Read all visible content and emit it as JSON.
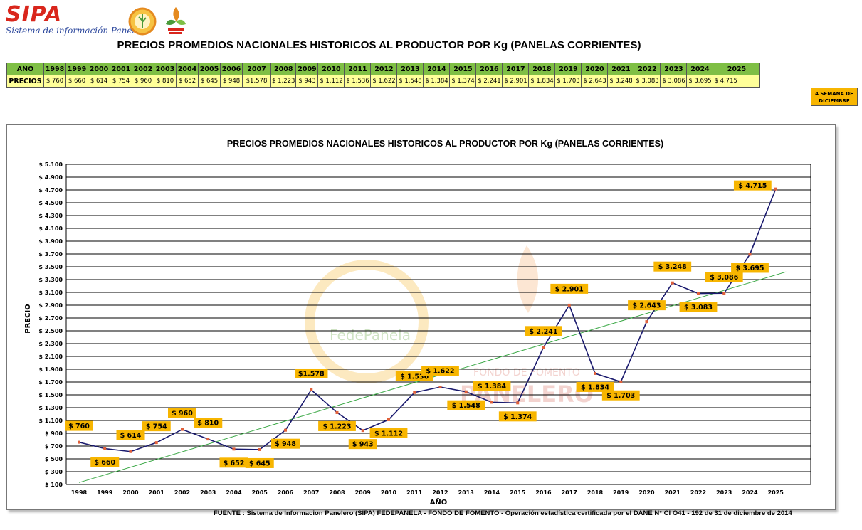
{
  "header": {
    "logo_text": "SIPA",
    "logo_subtitle": "Sistema de información Panelero",
    "title": "PRECIOS PROMEDIOS NACIONALES HISTORICOS AL PRODUCTOR POR Kg (PANELAS CORRIENTES)"
  },
  "price_table": {
    "year_header": "AÑO",
    "price_header": "PRECIOS",
    "years": [
      "1998",
      "1999",
      "2000",
      "2001",
      "2002",
      "2003",
      "2004",
      "2005",
      "2006",
      "2007",
      "2008",
      "2009",
      "2010",
      "2011",
      "2012",
      "2013",
      "2014",
      "2015",
      "2016",
      "2017",
      "2018",
      "2019",
      "2020",
      "2021",
      "2022",
      "2023",
      "2024",
      "2025"
    ],
    "prices": [
      "$ 760",
      "$ 660",
      "$ 614",
      "$ 754",
      "$ 960",
      "$ 810",
      "$ 652",
      "$ 645",
      "$ 948",
      "$1.578",
      "$ 1.223",
      "$ 943",
      "$ 1.112",
      "$ 1.536",
      "$ 1.622",
      "$ 1.548",
      "$ 1.384",
      "$ 1.374",
      "$ 2.241",
      "$ 2.901",
      "$ 1.834",
      "$ 1.703",
      "$ 2.643",
      "$ 3.248",
      "$ 3.083",
      "$ 3.086",
      "$ 3.695",
      "$        4.715"
    ],
    "week_note": "4 SEMANA DE DICIEMBRE"
  },
  "chart_data": {
    "type": "line",
    "title": "PRECIOS PROMEDIOS NACIONALES HISTORICOS AL PRODUCTOR POR Kg (PANELAS CORRIENTES)",
    "xlabel": "AÑO",
    "ylabel": "PRECIO",
    "ylim": [
      100,
      5100
    ],
    "ytick_step": 200,
    "ytick_prefix": "$ ",
    "grid": true,
    "legend": "none",
    "categories": [
      "1998",
      "1999",
      "2000",
      "2001",
      "2002",
      "2003",
      "2004",
      "2005",
      "2006",
      "2007",
      "2008",
      "2009",
      "2010",
      "2011",
      "2012",
      "2013",
      "2014",
      "2015",
      "2016",
      "2017",
      "2018",
      "2019",
      "2020",
      "2021",
      "2022",
      "2023",
      "2024",
      "2025"
    ],
    "values": [
      760,
      660,
      614,
      754,
      960,
      810,
      652,
      645,
      948,
      1578,
      1223,
      943,
      1112,
      1536,
      1622,
      1548,
      1384,
      1374,
      2241,
      2901,
      1834,
      1703,
      2643,
      3248,
      3083,
      3086,
      3695,
      4715
    ],
    "data_labels": [
      "$ 760",
      "$ 660",
      "$ 614",
      "$ 754",
      "$ 960",
      "$ 810",
      "$ 652",
      "$ 645",
      "$ 948",
      "$1.578",
      "$ 1.223",
      "$ 943",
      "$ 1.112",
      "$ 1.536",
      "$ 1.622",
      "$ 1.548",
      "$ 1.384",
      "$ 1.374",
      "$ 2.241",
      "$ 2.901",
      "$ 1.834",
      "$ 1.703",
      "$ 2.643",
      "$ 3.248",
      "$ 3.083",
      "$ 3.086",
      "$ 3.695",
      "$ 4.715"
    ],
    "label_side": [
      "above",
      "below",
      "above",
      "above",
      "above",
      "above",
      "below",
      "below",
      "below",
      "above",
      "below",
      "below",
      "below",
      "above",
      "above",
      "below",
      "above",
      "below",
      "above",
      "above",
      "below",
      "below",
      "above",
      "above",
      "below",
      "above",
      "below",
      "above"
    ],
    "trendline": {
      "start": [
        1998,
        130
      ],
      "end": [
        2025.4,
        3420
      ]
    },
    "line_color": "#1a1a6e",
    "marker_color": "#e0603a",
    "trend_color": "#3aa845",
    "label_bg": "#f7b500",
    "watermark_text": [
      "FedePanela",
      "FONDO DE FOMENTO",
      "PANELERO"
    ]
  },
  "footer": {
    "source": "FUENTE : Sistema de Informacion Panelero (SIPA)  FEDEPANELA - FONDO DE FOMENTO - Operación estadística certificada por el DANE N° CI O41 - 192  de 31 de diciembre de 2014"
  }
}
